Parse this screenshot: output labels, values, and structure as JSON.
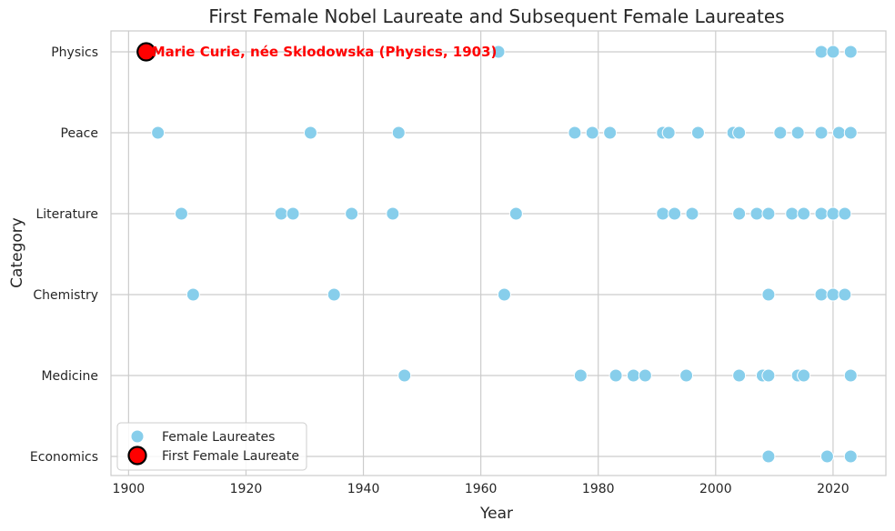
{
  "chart_data": {
    "type": "scatter",
    "title": "First Female Nobel Laureate and Subsequent Female Laureates",
    "xlabel": "Year",
    "ylabel": "Category",
    "xlim": [
      1897,
      2029
    ],
    "xticks": [
      1900,
      1920,
      1940,
      1960,
      1980,
      2000,
      2020
    ],
    "categories": [
      "Physics",
      "Peace",
      "Literature",
      "Chemistry",
      "Medicine",
      "Economics"
    ],
    "grid": true,
    "legend_position": "lower-left",
    "series": [
      {
        "name": "Female Laureates",
        "color": "#87CEEB",
        "points": [
          {
            "x": 1963,
            "y": "Physics"
          },
          {
            "x": 2018,
            "y": "Physics"
          },
          {
            "x": 2020,
            "y": "Physics"
          },
          {
            "x": 2023,
            "y": "Physics"
          },
          {
            "x": 1905,
            "y": "Peace"
          },
          {
            "x": 1931,
            "y": "Peace"
          },
          {
            "x": 1946,
            "y": "Peace"
          },
          {
            "x": 1976,
            "y": "Peace"
          },
          {
            "x": 1979,
            "y": "Peace"
          },
          {
            "x": 1982,
            "y": "Peace"
          },
          {
            "x": 1991,
            "y": "Peace"
          },
          {
            "x": 1992,
            "y": "Peace"
          },
          {
            "x": 1997,
            "y": "Peace"
          },
          {
            "x": 2003,
            "y": "Peace"
          },
          {
            "x": 2004,
            "y": "Peace"
          },
          {
            "x": 2011,
            "y": "Peace"
          },
          {
            "x": 2014,
            "y": "Peace"
          },
          {
            "x": 2018,
            "y": "Peace"
          },
          {
            "x": 2021,
            "y": "Peace"
          },
          {
            "x": 2023,
            "y": "Peace"
          },
          {
            "x": 1909,
            "y": "Literature"
          },
          {
            "x": 1926,
            "y": "Literature"
          },
          {
            "x": 1928,
            "y": "Literature"
          },
          {
            "x": 1938,
            "y": "Literature"
          },
          {
            "x": 1945,
            "y": "Literature"
          },
          {
            "x": 1966,
            "y": "Literature"
          },
          {
            "x": 1991,
            "y": "Literature"
          },
          {
            "x": 1993,
            "y": "Literature"
          },
          {
            "x": 1996,
            "y": "Literature"
          },
          {
            "x": 2004,
            "y": "Literature"
          },
          {
            "x": 2007,
            "y": "Literature"
          },
          {
            "x": 2009,
            "y": "Literature"
          },
          {
            "x": 2013,
            "y": "Literature"
          },
          {
            "x": 2015,
            "y": "Literature"
          },
          {
            "x": 2018,
            "y": "Literature"
          },
          {
            "x": 2020,
            "y": "Literature"
          },
          {
            "x": 2022,
            "y": "Literature"
          },
          {
            "x": 1911,
            "y": "Chemistry"
          },
          {
            "x": 1935,
            "y": "Chemistry"
          },
          {
            "x": 1964,
            "y": "Chemistry"
          },
          {
            "x": 2009,
            "y": "Chemistry"
          },
          {
            "x": 2018,
            "y": "Chemistry"
          },
          {
            "x": 2020,
            "y": "Chemistry"
          },
          {
            "x": 2022,
            "y": "Chemistry"
          },
          {
            "x": 1947,
            "y": "Medicine"
          },
          {
            "x": 1977,
            "y": "Medicine"
          },
          {
            "x": 1983,
            "y": "Medicine"
          },
          {
            "x": 1986,
            "y": "Medicine"
          },
          {
            "x": 1988,
            "y": "Medicine"
          },
          {
            "x": 1995,
            "y": "Medicine"
          },
          {
            "x": 2004,
            "y": "Medicine"
          },
          {
            "x": 2008,
            "y": "Medicine"
          },
          {
            "x": 2009,
            "y": "Medicine"
          },
          {
            "x": 2014,
            "y": "Medicine"
          },
          {
            "x": 2015,
            "y": "Medicine"
          },
          {
            "x": 2023,
            "y": "Medicine"
          },
          {
            "x": 2009,
            "y": "Economics"
          },
          {
            "x": 2019,
            "y": "Economics"
          },
          {
            "x": 2023,
            "y": "Economics"
          }
        ]
      },
      {
        "name": "First Female Laureate",
        "color": "#FF0000",
        "edge_color": "#000000",
        "points": [
          {
            "x": 1903,
            "y": "Physics"
          }
        ]
      }
    ],
    "annotations": [
      {
        "text": "Marie Curie, née Sklodowska (Physics, 1903)",
        "x": 1903,
        "y": "Physics",
        "color": "#FF0000"
      }
    ]
  }
}
